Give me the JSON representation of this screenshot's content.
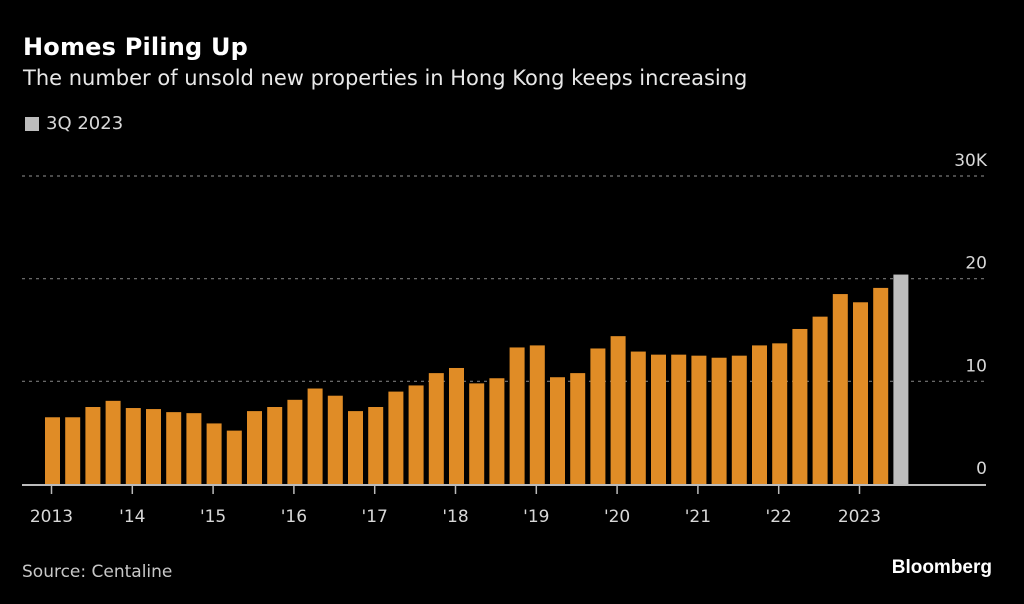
{
  "title": "Homes Piling Up",
  "subtitle": "The number of unsold new properties in Hong Kong keeps increasing",
  "legend": {
    "label": "3Q 2023",
    "color": "#bdbdbd"
  },
  "source": "Source: Centaline",
  "brand": "Bloomberg",
  "colors": {
    "bar": "#e08c26",
    "highlight": "#bdbdbd",
    "grid": "#777777",
    "axis": "#bbbbbb",
    "background": "#000000"
  },
  "chart_data": {
    "type": "bar",
    "title": "Homes Piling Up",
    "subtitle": "The number of unsold new properties in Hong Kong keeps increasing",
    "xlabel": "",
    "ylabel": "",
    "ylim": [
      0,
      30000
    ],
    "y_ticks": [
      {
        "value": 0,
        "label": "0"
      },
      {
        "value": 10000,
        "label": "10"
      },
      {
        "value": 20000,
        "label": "20"
      },
      {
        "value": 30000,
        "label": "30K"
      }
    ],
    "y_axis_side": "right",
    "grid": true,
    "x_ticks": [
      {
        "index": 0,
        "label": "2013"
      },
      {
        "index": 4,
        "label": "'14"
      },
      {
        "index": 8,
        "label": "'15"
      },
      {
        "index": 12,
        "label": "'16"
      },
      {
        "index": 16,
        "label": "'17"
      },
      {
        "index": 20,
        "label": "'18"
      },
      {
        "index": 24,
        "label": "'19"
      },
      {
        "index": 28,
        "label": "'20"
      },
      {
        "index": 32,
        "label": "'21"
      },
      {
        "index": 36,
        "label": "'22"
      },
      {
        "index": 40,
        "label": "2023"
      }
    ],
    "categories": [
      "1Q 2013",
      "2Q 2013",
      "3Q 2013",
      "4Q 2013",
      "1Q 2014",
      "2Q 2014",
      "3Q 2014",
      "4Q 2014",
      "1Q 2015",
      "2Q 2015",
      "3Q 2015",
      "4Q 2015",
      "1Q 2016",
      "2Q 2016",
      "3Q 2016",
      "4Q 2016",
      "1Q 2017",
      "2Q 2017",
      "3Q 2017",
      "4Q 2017",
      "1Q 2018",
      "2Q 2018",
      "3Q 2018",
      "4Q 2018",
      "1Q 2019",
      "2Q 2019",
      "3Q 2019",
      "4Q 2019",
      "1Q 2020",
      "2Q 2020",
      "3Q 2020",
      "4Q 2020",
      "1Q 2021",
      "2Q 2021",
      "3Q 2021",
      "4Q 2021",
      "1Q 2022",
      "2Q 2022",
      "3Q 2022",
      "4Q 2022",
      "1Q 2023",
      "2Q 2023",
      "3Q 2023"
    ],
    "values": [
      6500,
      6500,
      7500,
      8100,
      7400,
      7300,
      7000,
      6900,
      5900,
      5200,
      7100,
      7500,
      8200,
      9300,
      8600,
      7100,
      7500,
      9000,
      9600,
      10800,
      11300,
      9800,
      10300,
      13300,
      13500,
      10400,
      10800,
      13200,
      14400,
      12900,
      12600,
      12600,
      12500,
      12300,
      12500,
      13500,
      13700,
      15100,
      16300,
      18500,
      17700,
      19100,
      20400
    ],
    "highlight_index": 42,
    "legend": [
      {
        "name": "3Q 2023",
        "color": "#bdbdbd"
      }
    ],
    "legend_position": "top-left"
  }
}
